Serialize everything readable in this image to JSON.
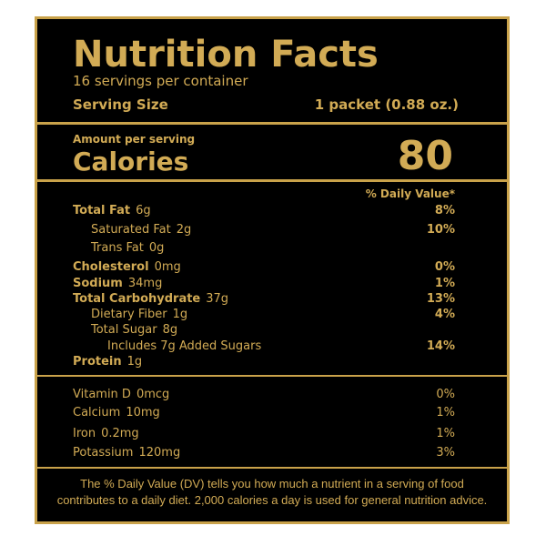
{
  "header": {
    "title": "Nutrition Facts",
    "servings": "16 servings per container",
    "serving_size_label": "Serving Size",
    "serving_size": "1 packet (0.88 oz.)"
  },
  "calories": {
    "amount_label": "Amount per serving",
    "label": "Calories",
    "value": "80"
  },
  "daily_value_header": "% Daily Value*",
  "nutrients": [
    {
      "name": "Total Fat",
      "amount": "6g",
      "dv": "8%"
    },
    {
      "name": "Saturated Fat",
      "amount": "2g",
      "dv": "10%"
    },
    {
      "name": "Trans Fat",
      "amount": "0g"
    },
    {
      "name": "Cholesterol",
      "amount": "0mg",
      "dv": "0%"
    },
    {
      "name": "Sodium",
      "amount": "34mg",
      "dv": "1%"
    },
    {
      "name": "Total Carbohydrate",
      "amount": "37g",
      "dv": "13%"
    },
    {
      "name": "Dietary Fiber",
      "amount": "1g",
      "dv": "4%"
    },
    {
      "name": "Total Sugar",
      "amount": "8g"
    },
    {
      "name": "Includes 7g Added Sugars",
      "dv": "14%"
    },
    {
      "name": "Protein",
      "amount": "1g"
    }
  ],
  "vitamins": [
    {
      "name": "Vitamin D",
      "amount": "0mcg",
      "dv": "0%"
    },
    {
      "name": "Calcium",
      "amount": "10mg",
      "dv": "1%"
    },
    {
      "name": "Iron",
      "amount": "0.2mg",
      "dv": "1%"
    },
    {
      "name": "Potassium",
      "amount": "120mg",
      "dv": "3%"
    }
  ],
  "footnote": [
    "The % Daily Value (DV) tells you how much a nutrient in a serving of food",
    "contributes to a daily diet. 2,000 calories a day is used for general nutrition advice."
  ]
}
